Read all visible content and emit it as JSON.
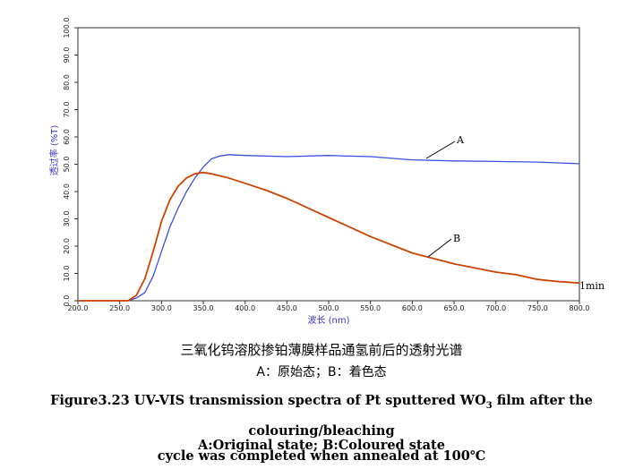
{
  "chart_data": {
    "type": "line",
    "xlabel": "波长 (nm)",
    "ylabel": "透过率 (%T)",
    "xlim": [
      200,
      800
    ],
    "ylim": [
      0,
      100
    ],
    "x_ticks": [
      "200.0",
      "250.0",
      "300.0",
      "350.0",
      "400.0",
      "450.0",
      "500.0",
      "550.0",
      "600.0",
      "650.0",
      "700.0",
      "750.0",
      "800.0"
    ],
    "y_ticks": [
      "0.0",
      "10.0",
      "20.0",
      "30.0",
      "40.0",
      "50.0",
      "60.0",
      "70.0",
      "80.0",
      "90.0",
      "100.0"
    ],
    "series": [
      {
        "name": "A",
        "color": "#3b4fe0",
        "x": [
          200,
          260,
          270,
          280,
          290,
          300,
          310,
          320,
          330,
          340,
          350,
          360,
          370,
          380,
          400,
          450,
          500,
          550,
          600,
          650,
          700,
          750,
          800
        ],
        "y": [
          0,
          0,
          1,
          3,
          9,
          18,
          27,
          34,
          40,
          45,
          49,
          52,
          53,
          53.5,
          53.2,
          52.8,
          53.2,
          52.8,
          51.6,
          51.2,
          51,
          50.8,
          50.2
        ]
      },
      {
        "name": "B",
        "color": "#cc4400",
        "x": [
          200,
          260,
          270,
          280,
          290,
          300,
          310,
          320,
          330,
          340,
          350,
          360,
          380,
          400,
          425,
          450,
          475,
          500,
          525,
          550,
          575,
          600,
          625,
          650,
          675,
          700,
          725,
          750,
          775,
          800
        ],
        "y": [
          0,
          0,
          2,
          8,
          18,
          29,
          37,
          42,
          45,
          46.5,
          47,
          46.5,
          45,
          43,
          40.5,
          37.5,
          34,
          30.5,
          27,
          23.5,
          20.5,
          17.5,
          15.5,
          13.5,
          12,
          10.5,
          9.5,
          7.8,
          7,
          6.5
        ]
      }
    ],
    "annotations": [
      "A",
      "B",
      "1min"
    ]
  },
  "captions": {
    "cn_title": "三氧化钨溶胶掺铂薄膜样品通氢前后的透射光谱",
    "cn_legend": "A：原始态；B：着色态",
    "en_line1_pre": "Figure3.23 UV-VIS transmission spectra of Pt sputtered WO",
    "en_line1_sub": "3",
    "en_line1_post": " film after the colouring/bleaching",
    "en_line2": "cycle was completed when annealed at 100℃",
    "en_line3": "A:Original state; B:Coloured state"
  }
}
